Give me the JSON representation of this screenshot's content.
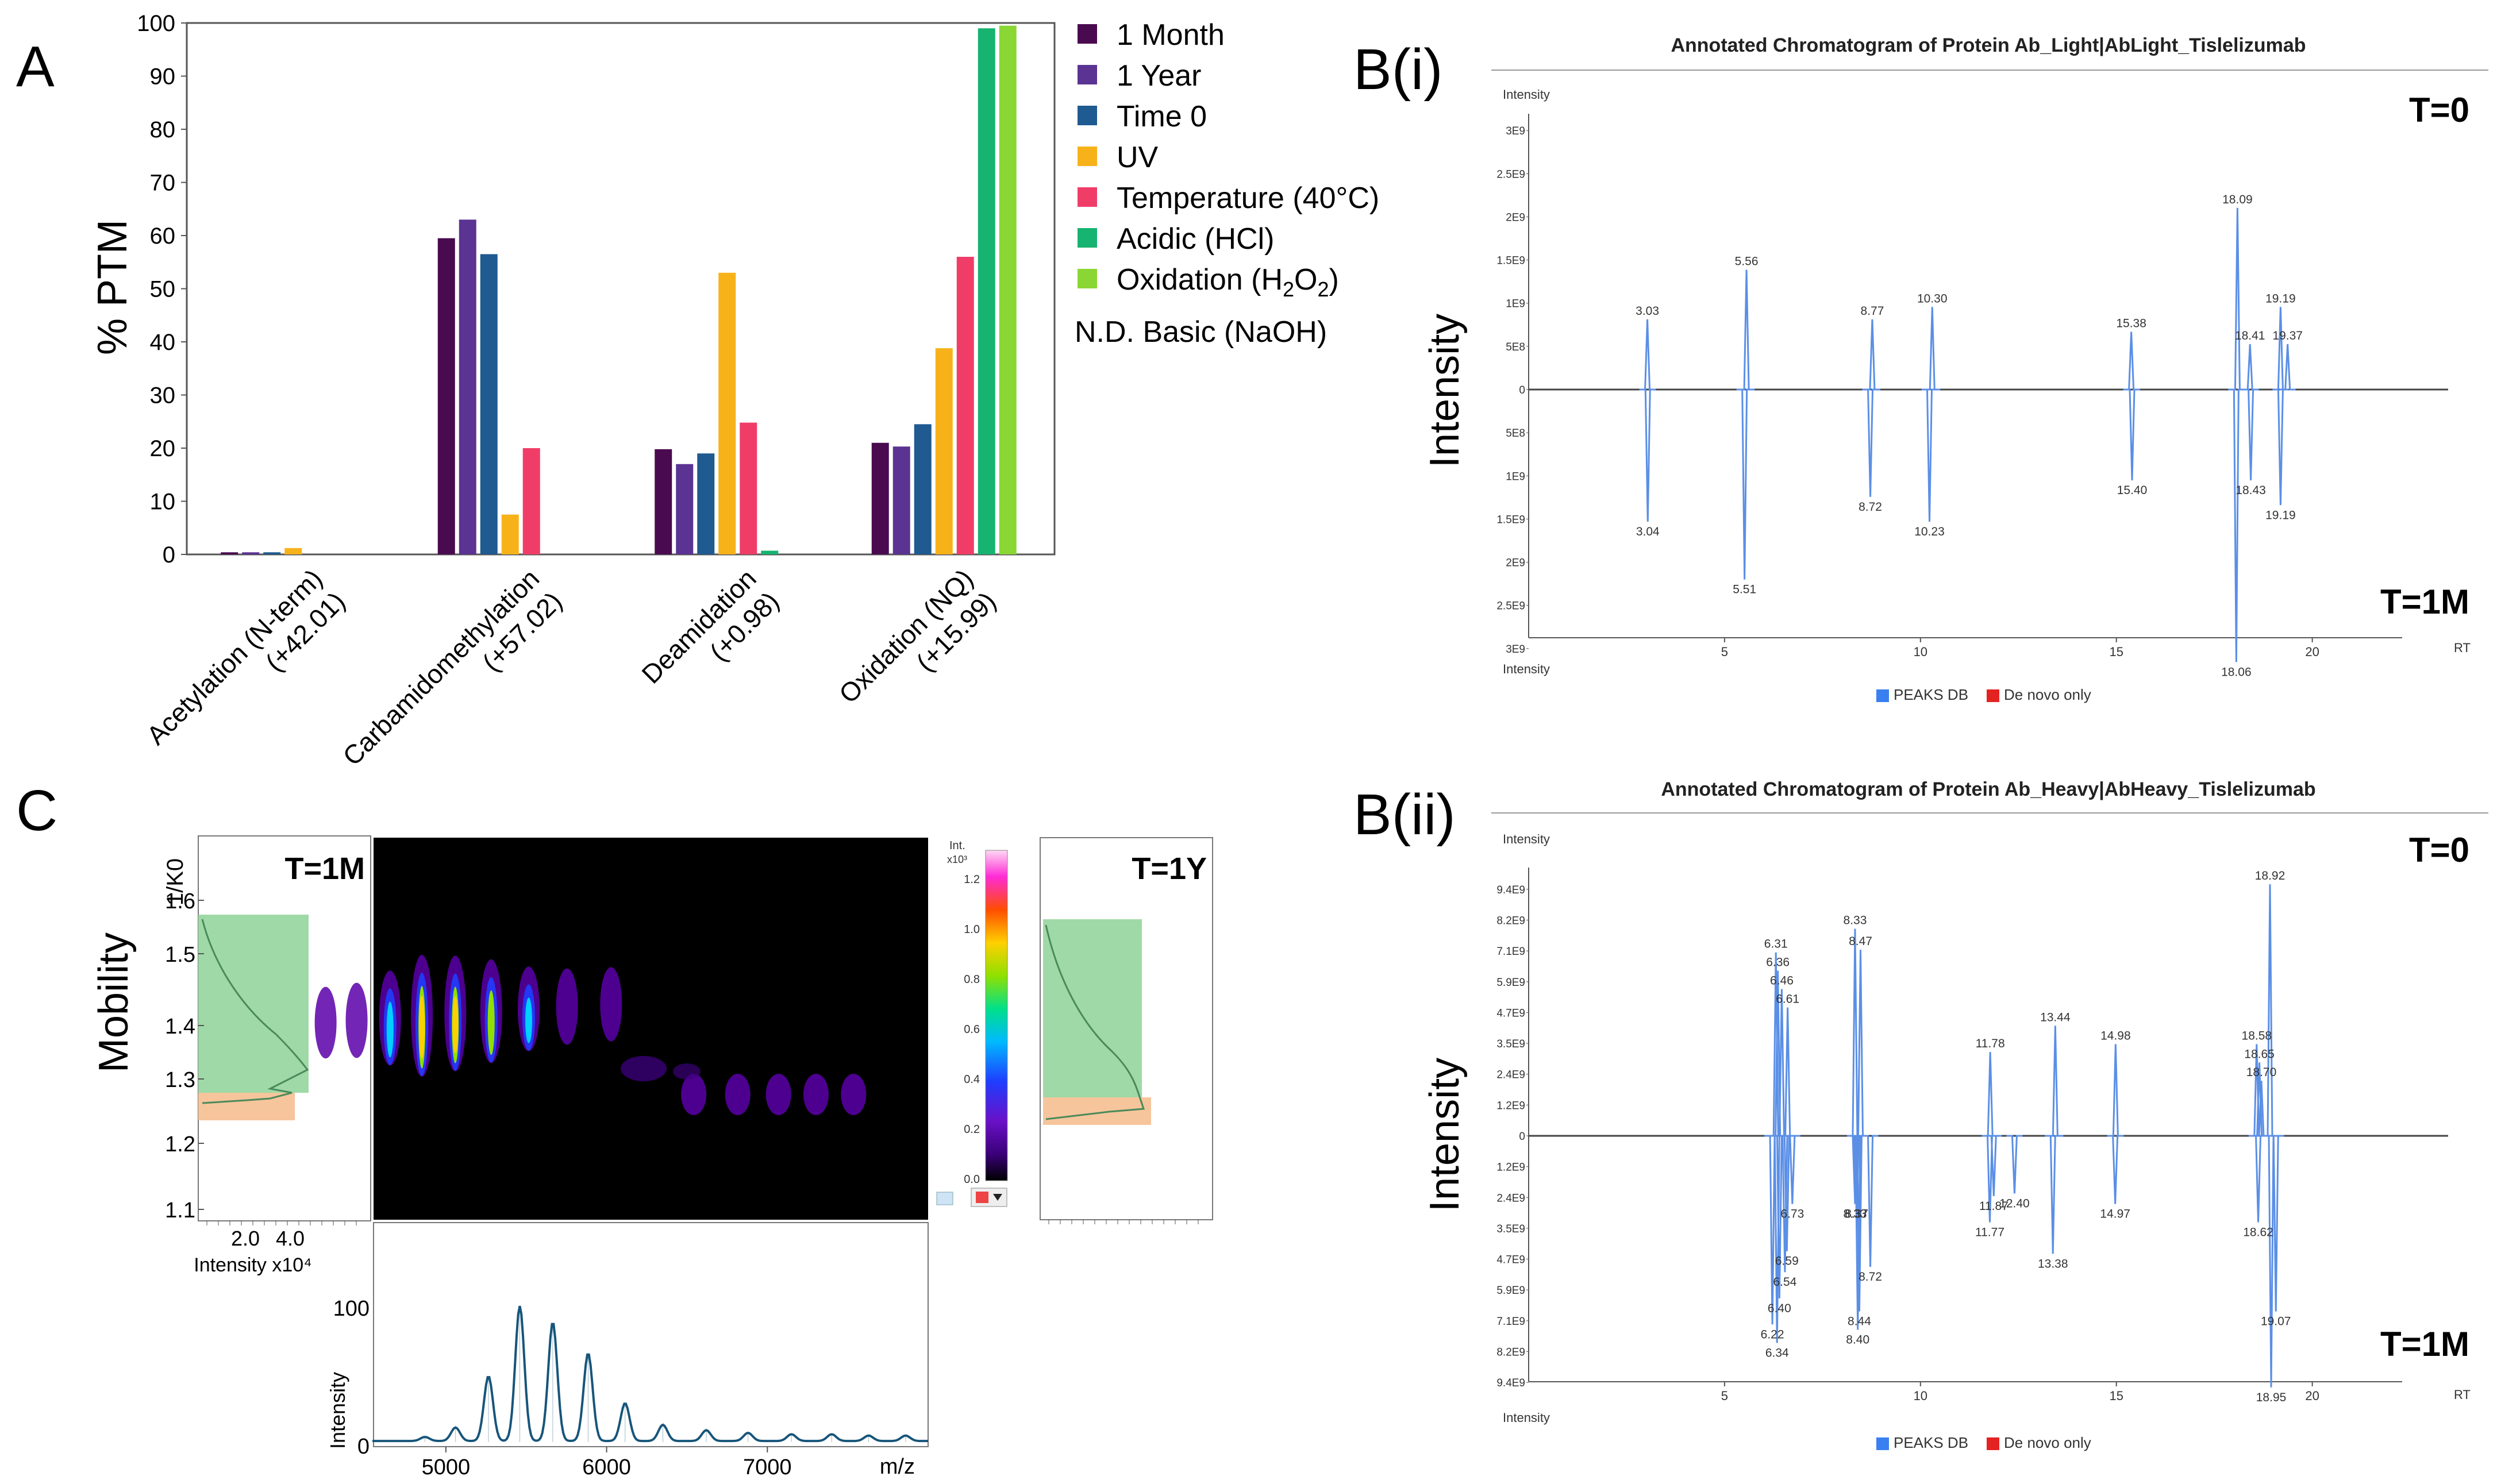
{
  "panels": {
    "A": "A",
    "Bi": "B(i)",
    "Bii": "B(ii)",
    "C": "C"
  },
  "chart_data": [
    {
      "type": "bar",
      "id": "A",
      "ylabel": "% PTM",
      "ylim": [
        0,
        100
      ],
      "yticks": [
        0,
        10,
        20,
        30,
        40,
        50,
        60,
        70,
        80,
        90,
        100
      ],
      "categories": [
        "Acetylation (N-term)\n(+42.01)",
        "Carbamidomethylation\n(+57.02)",
        "Deamidation\n(+0.98)",
        "Oxidation (NQ)\n(+15.99)"
      ],
      "series": [
        {
          "name": "1 Month",
          "color": "#4a0a4f",
          "values": [
            0.4,
            59.5,
            19.8,
            21
          ]
        },
        {
          "name": "1 Year",
          "color": "#5b3392",
          "values": [
            0.4,
            63,
            17,
            20.3
          ]
        },
        {
          "name": "Time 0",
          "color": "#1f5a90",
          "values": [
            0.4,
            56.5,
            19,
            24.5
          ]
        },
        {
          "name": "UV",
          "color": "#f7b21a",
          "values": [
            1.2,
            7.5,
            53,
            38.8
          ]
        },
        {
          "name": "Temperature (40°C)",
          "color": "#f03d68",
          "values": [
            0,
            20,
            24.8,
            56
          ]
        },
        {
          "name": "Acidic (HCl)",
          "color": "#16b371",
          "values": [
            0,
            0,
            0.7,
            99
          ]
        },
        {
          "name": "Oxidation (H2O2)",
          "color": "#8ad634",
          "values": [
            0,
            0,
            0,
            99.5
          ]
        }
      ],
      "legend_note": "N.D. Basic (NaOH)"
    },
    {
      "type": "line",
      "id": "Bi",
      "title": "Annotated Chromatogram of Protein Ab_Light|AbLight_Tislelizumab",
      "ylabel": "Intensity",
      "small_ylabel": "Intensity",
      "xlabel": "RT",
      "xlim": [
        0,
        22
      ],
      "xticks": [
        5,
        10,
        15,
        20
      ],
      "ymax": 3.2,
      "yticks": [
        "3E9",
        "2.5E9",
        "2E9",
        "1.5E9",
        "1E9",
        "5E8",
        "0",
        "5E8",
        "1E9",
        "1.5E9",
        "2E9",
        "2.5E9",
        "3E9"
      ],
      "top_label": "T=0",
      "bottom_label": "T=1M",
      "top_peaks": [
        [
          3.03,
          0.85
        ],
        [
          5.56,
          1.45
        ],
        [
          8.77,
          0.85
        ],
        [
          10.3,
          1.0
        ],
        [
          15.38,
          0.7
        ],
        [
          18.09,
          2.2
        ],
        [
          18.41,
          0.55
        ],
        [
          19.19,
          1.0
        ],
        [
          19.37,
          0.55
        ]
      ],
      "top_labels": [
        "3.03",
        "5.56",
        "8.77",
        "10.30",
        "15.38",
        "18.09",
        "18.41",
        "19.19",
        "19.37"
      ],
      "bottom_peaks": [
        [
          3.04,
          1.6
        ],
        [
          5.51,
          2.3
        ],
        [
          8.72,
          1.3
        ],
        [
          10.23,
          1.6
        ],
        [
          15.4,
          1.1
        ],
        [
          18.06,
          3.3
        ],
        [
          18.43,
          1.1
        ],
        [
          19.19,
          1.4
        ]
      ],
      "bottom_labels": [
        "3.04",
        "5.51",
        "8.72",
        "10.23",
        "15.40",
        "18.06",
        "18.43",
        "19.19"
      ],
      "legend": [
        {
          "name": "PEAKS DB",
          "color": "#3a7ff0"
        },
        {
          "name": "De novo only",
          "color": "#e52222"
        }
      ]
    },
    {
      "type": "line",
      "id": "Bii",
      "title": "Annotated Chromatogram of Protein Ab_Heavy|AbHeavy_Tislelizumab",
      "ylabel": "Intensity",
      "small_ylabel": "Intensity",
      "xlabel": "RT",
      "xlim": [
        0,
        22
      ],
      "xticks": [
        5,
        10,
        15,
        20
      ],
      "ymax": 9.8,
      "yticks": [
        "9.4E9",
        "8.2E9",
        "7.1E9",
        "5.9E9",
        "4.7E9",
        "3.5E9",
        "2.4E9",
        "1.2E9",
        "0",
        "1.2E9",
        "2.4E9",
        "3.5E9",
        "4.7E9",
        "5.9E9",
        "7.1E9",
        "8.2E9",
        "9.4E9"
      ],
      "top_label": "T=0",
      "bottom_label": "T=1M",
      "top_peaks": [
        [
          6.31,
          7.0
        ],
        [
          6.36,
          6.3
        ],
        [
          6.46,
          5.6
        ],
        [
          6.61,
          4.9
        ],
        [
          8.33,
          7.9
        ],
        [
          8.47,
          7.1
        ],
        [
          11.78,
          3.2
        ],
        [
          13.44,
          4.2
        ],
        [
          14.98,
          3.5
        ],
        [
          18.58,
          3.5
        ],
        [
          18.65,
          2.8
        ],
        [
          18.7,
          2.1
        ],
        [
          18.92,
          9.6
        ]
      ],
      "top_labels": [
        "6.31",
        "6.36",
        "6.46",
        "6.61",
        "8.33",
        "8.47",
        "11.78",
        "13.44",
        "14.98",
        "18.58",
        "18.65",
        "18.70",
        "18.92"
      ],
      "bottom_peaks": [
        [
          6.73,
          2.6
        ],
        [
          6.59,
          4.4
        ],
        [
          6.54,
          5.2
        ],
        [
          6.4,
          6.2
        ],
        [
          6.22,
          7.2
        ],
        [
          6.34,
          7.9
        ],
        [
          8.33,
          2.6
        ],
        [
          8.37,
          2.6
        ],
        [
          8.72,
          5.0
        ],
        [
          8.44,
          6.7
        ],
        [
          8.4,
          7.4
        ],
        [
          11.87,
          2.3
        ],
        [
          12.4,
          2.2
        ],
        [
          11.77,
          3.3
        ],
        [
          13.38,
          4.5
        ],
        [
          14.97,
          2.6
        ],
        [
          18.62,
          3.3
        ],
        [
          19.07,
          6.7
        ],
        [
          18.95,
          9.6
        ]
      ],
      "bottom_labels": [
        "6.73",
        "6.59",
        "6.54",
        "6.40",
        "6.22",
        "6.34",
        "8.33",
        "8.37",
        "8.72",
        "8.44",
        "8.40",
        "11.87",
        "12.40",
        "11.77",
        "13.38",
        "14.97",
        "18.62",
        "19.07",
        "18.95"
      ],
      "legend": [
        {
          "name": "PEAKS DB",
          "color": "#3a7ff0"
        },
        {
          "name": "De novo only",
          "color": "#e52222"
        }
      ]
    },
    {
      "type": "heatmap",
      "id": "C",
      "ylabel": "Mobility",
      "small_ylabel": "1/K0",
      "y_ticks": [
        "1.6",
        "1.5",
        "1.4",
        "1.3",
        "1.2",
        "1.1"
      ],
      "left_label": "T=1M",
      "right_label": "T=1Y",
      "left_xticks": [
        "2.0",
        "4.0"
      ],
      "left_xlabel": "Intensity x10⁴",
      "colorbar_label": "Int.",
      "colorbar_unit": "x10³",
      "colorbar_ticks": [
        "1.2",
        "1.0",
        "0.8",
        "0.6",
        "0.4",
        "0.2",
        "0.0"
      ],
      "spectrum": {
        "xlabel": "m/z",
        "ylabel": "Intensity",
        "x_ticks": [
          "5000",
          "6000",
          "7000"
        ],
        "y_ticks": [
          "100",
          "0"
        ],
        "peaks_mz": [
          4870,
          5060,
          5265,
          5460,
          5665,
          5885,
          6115,
          6350,
          6620,
          6880,
          7150,
          7400,
          7630,
          7860
        ],
        "peaks_rel": [
          3,
          10,
          48,
          100,
          88,
          65,
          28,
          12,
          8,
          6,
          5,
          5,
          4,
          4
        ]
      }
    }
  ]
}
